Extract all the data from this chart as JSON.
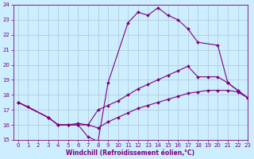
{
  "xlabel": "Windchill (Refroidissement éolien,°C)",
  "curve1_x": [
    0,
    1,
    3,
    4,
    5,
    6,
    7,
    8,
    9,
    11,
    12,
    13,
    14,
    15,
    16,
    17,
    18,
    20,
    21,
    22,
    23
  ],
  "curve1_y": [
    17.5,
    17.2,
    16.5,
    16.0,
    16.0,
    16.0,
    15.2,
    14.9,
    18.8,
    22.8,
    23.5,
    23.3,
    23.8,
    23.3,
    23.0,
    22.4,
    21.5,
    21.3,
    18.8,
    18.3,
    17.8
  ],
  "curve2_x": [
    0,
    3,
    4,
    5,
    6,
    7,
    8,
    9,
    10,
    11,
    12,
    13,
    14,
    15,
    16,
    17,
    18,
    19,
    20,
    21,
    22,
    23
  ],
  "curve2_y": [
    17.5,
    16.5,
    16.0,
    16.0,
    16.1,
    16.0,
    17.0,
    17.3,
    17.6,
    18.0,
    18.4,
    18.7,
    19.0,
    19.3,
    19.6,
    19.9,
    19.2,
    19.2,
    19.2,
    18.8,
    18.3,
    17.8
  ],
  "curve3_x": [
    0,
    3,
    4,
    5,
    6,
    7,
    8,
    9,
    10,
    11,
    12,
    13,
    14,
    15,
    16,
    17,
    18,
    19,
    20,
    21,
    22,
    23
  ],
  "curve3_y": [
    17.5,
    16.5,
    16.0,
    16.0,
    16.0,
    16.0,
    15.8,
    16.2,
    16.5,
    16.8,
    17.1,
    17.3,
    17.5,
    17.7,
    17.9,
    18.1,
    18.2,
    18.3,
    18.3,
    18.3,
    18.2,
    17.8
  ],
  "line_color": "#800080",
  "marker": "D",
  "marker_size": 2,
  "lw": 0.8,
  "bg_color": "#cceeff",
  "grid_color": "#aabbcc",
  "ylim": [
    15,
    24
  ],
  "xlim": [
    -0.5,
    23
  ],
  "yticks": [
    15,
    16,
    17,
    18,
    19,
    20,
    21,
    22,
    23,
    24
  ],
  "xticks": [
    0,
    1,
    2,
    3,
    4,
    5,
    6,
    7,
    8,
    9,
    10,
    11,
    12,
    13,
    14,
    15,
    16,
    17,
    18,
    19,
    20,
    21,
    22,
    23
  ],
  "tick_fontsize": 5.0,
  "xlabel_fontsize": 5.5
}
